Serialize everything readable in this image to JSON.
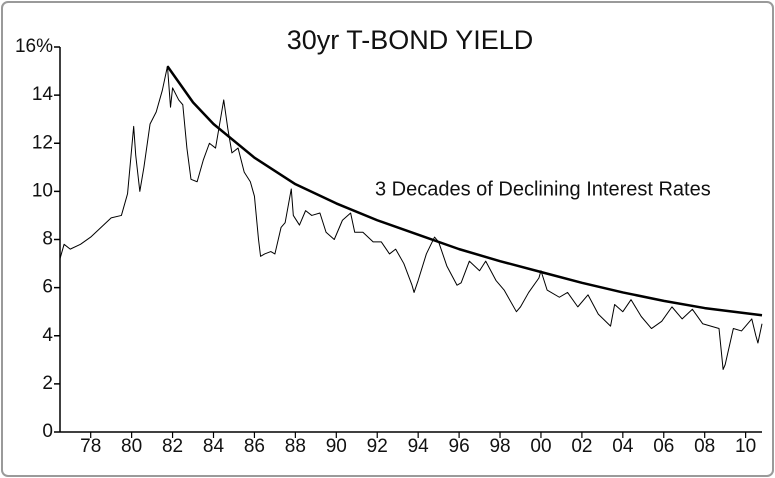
{
  "chart_data": {
    "type": "line",
    "title": "30yr T-BOND YIELD",
    "annotation": "3 Decades of Declining Interest Rates",
    "xlim": [
      1976.5,
      2010.8
    ],
    "ylim": [
      0,
      16
    ],
    "xticks": [
      {
        "value": 1978,
        "label": "78"
      },
      {
        "value": 1980,
        "label": "80"
      },
      {
        "value": 1982,
        "label": "82"
      },
      {
        "value": 1984,
        "label": "84"
      },
      {
        "value": 1986,
        "label": "86"
      },
      {
        "value": 1988,
        "label": "88"
      },
      {
        "value": 1990,
        "label": "90"
      },
      {
        "value": 1992,
        "label": "92"
      },
      {
        "value": 1994,
        "label": "94"
      },
      {
        "value": 1996,
        "label": "96"
      },
      {
        "value": 1998,
        "label": "98"
      },
      {
        "value": 2000,
        "label": "00"
      },
      {
        "value": 2002,
        "label": "02"
      },
      {
        "value": 2004,
        "label": "04"
      },
      {
        "value": 2006,
        "label": "06"
      },
      {
        "value": 2008,
        "label": "08"
      },
      {
        "value": 2010,
        "label": "10"
      }
    ],
    "yticks": [
      0,
      2,
      4,
      6,
      8,
      10,
      12,
      14,
      {
        "value": 16,
        "label": "16%"
      }
    ],
    "series": [
      {
        "color": "#000000",
        "width": 1,
        "x": [
          1976.5,
          1976.7,
          1977.0,
          1977.5,
          1978.0,
          1978.5,
          1979.0,
          1979.5,
          1979.8,
          1980.1,
          1980.2,
          1980.4,
          1980.6,
          1980.9,
          1981.2,
          1981.5,
          1981.75,
          1981.9,
          1982.0,
          1982.3,
          1982.5,
          1982.7,
          1982.9,
          1983.2,
          1983.5,
          1983.8,
          1984.1,
          1984.4,
          1984.5,
          1984.7,
          1984.9,
          1985.2,
          1985.5,
          1985.8,
          1986.0,
          1986.2,
          1986.3,
          1986.5,
          1986.8,
          1987.0,
          1987.3,
          1987.5,
          1987.8,
          1987.9,
          1988.2,
          1988.5,
          1988.8,
          1989.2,
          1989.5,
          1989.9,
          1990.3,
          1990.7,
          1990.9,
          1991.3,
          1991.8,
          1992.2,
          1992.6,
          1992.9,
          1993.3,
          1993.7,
          1993.8,
          1994.0,
          1994.4,
          1994.8,
          1995.0,
          1995.4,
          1995.9,
          1996.1,
          1996.5,
          1997.0,
          1997.3,
          1997.8,
          1998.2,
          1998.8,
          1999.0,
          1999.4,
          1999.9,
          2000.0,
          2000.3,
          2000.9,
          2001.3,
          2001.8,
          2002.3,
          2002.8,
          2003.4,
          2003.6,
          2004.0,
          2004.4,
          2004.9,
          2005.4,
          2005.9,
          2006.4,
          2006.9,
          2007.4,
          2007.9,
          2008.3,
          2008.7,
          2008.9,
          2009.0,
          2009.4,
          2009.8,
          2010.3,
          2010.5,
          2010.6,
          2010.8
        ],
        "values": [
          7.2,
          7.8,
          7.6,
          7.8,
          8.1,
          8.5,
          8.9,
          9.0,
          9.9,
          12.7,
          11.5,
          10.0,
          11.0,
          12.8,
          13.3,
          14.2,
          15.2,
          13.5,
          14.3,
          13.8,
          13.6,
          11.8,
          10.5,
          10.4,
          11.3,
          12.0,
          11.8,
          13.3,
          13.8,
          12.6,
          11.6,
          11.8,
          10.8,
          10.4,
          9.8,
          8.0,
          7.3,
          7.4,
          7.5,
          7.4,
          8.5,
          8.7,
          10.1,
          9.0,
          8.6,
          9.2,
          9.0,
          9.1,
          8.3,
          8.0,
          8.8,
          9.1,
          8.3,
          8.3,
          7.9,
          7.9,
          7.4,
          7.6,
          7.0,
          6.1,
          5.8,
          6.3,
          7.4,
          8.1,
          7.9,
          6.9,
          6.1,
          6.2,
          7.1,
          6.7,
          7.1,
          6.3,
          5.9,
          5.0,
          5.2,
          5.8,
          6.4,
          6.7,
          5.9,
          5.6,
          5.8,
          5.2,
          5.7,
          4.9,
          4.4,
          5.3,
          5.0,
          5.5,
          4.8,
          4.3,
          4.6,
          5.2,
          4.7,
          5.1,
          4.5,
          4.4,
          4.3,
          2.6,
          2.8,
          4.3,
          4.2,
          4.7,
          4.0,
          3.7,
          4.5
        ]
      },
      {
        "color": "#000000",
        "width": 2.5,
        "x": [
          1981.75,
          1983,
          1984,
          1986,
          1988,
          1990,
          1992,
          1994,
          1996,
          1998,
          2000,
          2002,
          2004,
          2006,
          2008,
          2010.8
        ],
        "values": [
          15.2,
          13.7,
          12.8,
          11.4,
          10.3,
          9.5,
          8.8,
          8.2,
          7.6,
          7.1,
          6.65,
          6.2,
          5.8,
          5.45,
          5.15,
          4.85
        ]
      }
    ]
  }
}
